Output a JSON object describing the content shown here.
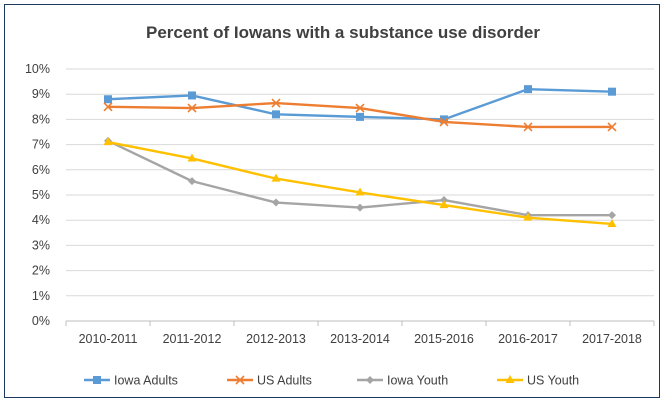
{
  "chart_data": {
    "type": "line",
    "title": "Percent of Iowans with a substance use disorder",
    "categories": [
      "2010-2011",
      "2011-2012",
      "2012-2013",
      "2013-2014",
      "2015-2016",
      "2016-2017",
      "2017-2018"
    ],
    "ylim": [
      0,
      10
    ],
    "yticks": [
      "0%",
      "1%",
      "2%",
      "3%",
      "4%",
      "5%",
      "6%",
      "7%",
      "8%",
      "9%",
      "10%"
    ],
    "grid": true,
    "legend": "bottom",
    "series": [
      {
        "name": "Iowa Adults",
        "color": "#5b9bd5",
        "marker": "square",
        "values": [
          8.8,
          8.95,
          8.2,
          8.1,
          8.0,
          9.2,
          9.1
        ]
      },
      {
        "name": "US Adults",
        "color": "#ed7d31",
        "marker": "x",
        "values": [
          8.5,
          8.45,
          8.65,
          8.45,
          7.9,
          7.7,
          7.7
        ]
      },
      {
        "name": "Iowa Youth",
        "color": "#a5a5a5",
        "marker": "diamond",
        "values": [
          7.15,
          5.55,
          4.7,
          4.5,
          4.8,
          4.2,
          4.2
        ]
      },
      {
        "name": "US Youth",
        "color": "#ffc000",
        "marker": "triangle",
        "values": [
          7.1,
          6.45,
          5.65,
          5.1,
          4.6,
          4.1,
          3.85
        ]
      }
    ]
  }
}
